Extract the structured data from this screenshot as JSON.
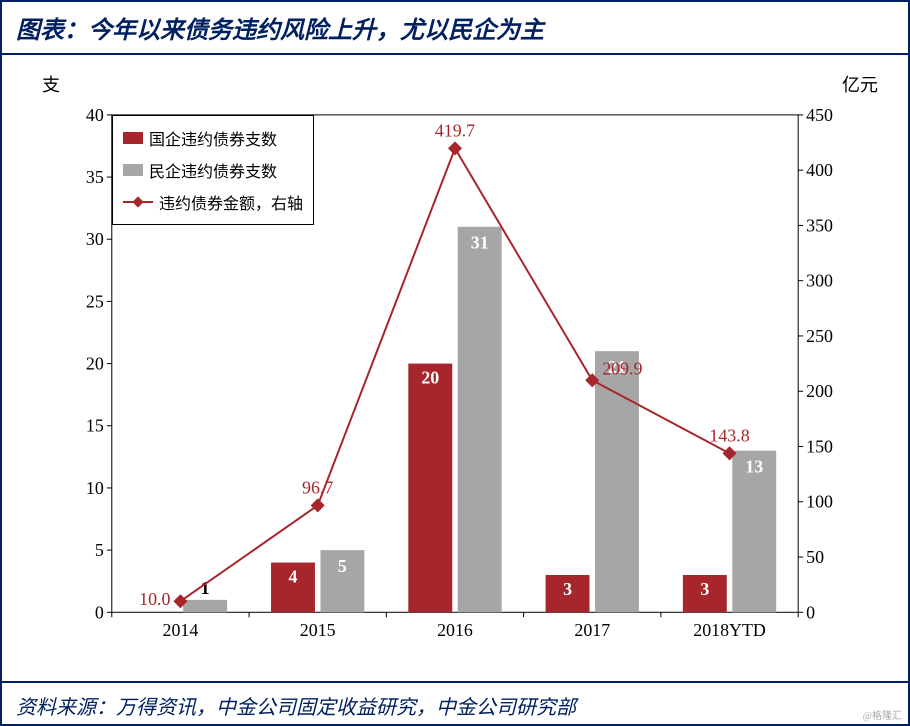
{
  "title": "图表：今年以来债务违约风险上升，尤以民企为主",
  "source": "资料来源：万得资讯，中金公司固定收益研究，中金公司研究部",
  "watermark": "@格隆汇",
  "y_left_label": "支",
  "y_right_label": "亿元",
  "chart": {
    "type": "combo-bar-line",
    "categories": [
      "2014",
      "2015",
      "2016",
      "2017",
      "2018YTD"
    ],
    "series": {
      "soe_bars": {
        "label": "国企违约债券支数",
        "color": "#a6262b",
        "values": [
          0,
          4,
          20,
          3,
          3
        ],
        "data_labels": [
          null,
          "4",
          "20",
          "3",
          "3"
        ]
      },
      "poe_bars": {
        "label": "民企违约债券支数",
        "color": "#a6a6a6",
        "values": [
          1,
          5,
          31,
          21,
          13
        ],
        "data_labels": [
          "1",
          "5",
          "31",
          "21",
          "13"
        ]
      },
      "amount_line": {
        "label": "违约债券金额，右轴",
        "color": "#a6262b",
        "values": [
          10.0,
          96.7,
          419.7,
          209.9,
          143.8
        ],
        "data_labels": [
          "10.0",
          "96.7",
          "419.7",
          "209.9",
          "143.8"
        ]
      }
    },
    "y_left": {
      "min": 0,
      "max": 40,
      "step": 5,
      "ticks": [
        0,
        5,
        10,
        15,
        20,
        25,
        30,
        35,
        40
      ]
    },
    "y_right": {
      "min": 0,
      "max": 450,
      "step": 50,
      "ticks": [
        0,
        50,
        100,
        150,
        200,
        250,
        300,
        350,
        400,
        450
      ]
    },
    "tick_fontsize": 18,
    "data_label_fontsize": 18,
    "bar_width": 0.32,
    "bar_gap": 0.04,
    "grid_color": "#000000",
    "axis_color": "#000000",
    "background_color": "#ffffff"
  }
}
